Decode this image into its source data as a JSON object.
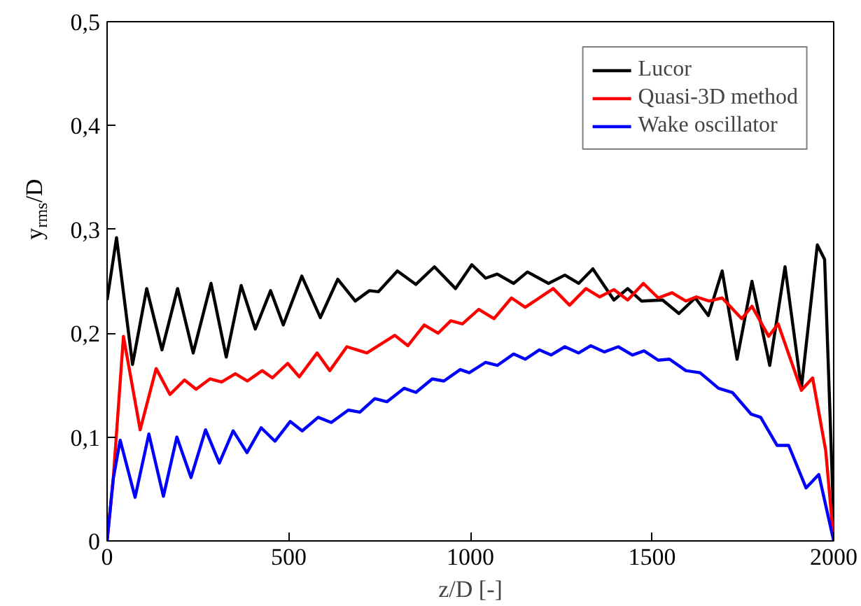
{
  "chart_data": {
    "type": "line",
    "xlabel": "z/D [-]",
    "ylabel": "y$_{rms}$/D",
    "xlim": [
      0,
      2000
    ],
    "ylim": [
      0,
      0.5
    ],
    "xticks": [
      0,
      500,
      1000,
      1500,
      2000
    ],
    "yticks": [
      0,
      {
        "value": 0.1,
        "label": "0,1"
      },
      {
        "value": 0.2,
        "label": "0,2"
      },
      {
        "value": 0.3,
        "label": "0,3"
      },
      {
        "value": 0.4,
        "label": "0,4"
      },
      {
        "value": 0.5,
        "label": "0,5"
      }
    ],
    "grid": false,
    "legend": "top right",
    "line_style": "solid",
    "marker": "none",
    "series": [
      {
        "name": "Lucor",
        "color": "#000000",
        "x": [
          0,
          26,
          70,
          109,
          151,
          194,
          237,
          286,
          328,
          369,
          408,
          450,
          485,
          536,
          587,
          635,
          683,
          722,
          747,
          799,
          850,
          901,
          959,
          1004,
          1042,
          1074,
          1119,
          1157,
          1215,
          1260,
          1298,
          1337,
          1395,
          1433,
          1471,
          1529,
          1574,
          1619,
          1655,
          1693,
          1734,
          1775,
          1824,
          1866,
          1911,
          1955,
          1975,
          2000
        ],
        "values": [
          0.232,
          0.292,
          0.17,
          0.243,
          0.184,
          0.243,
          0.181,
          0.248,
          0.177,
          0.246,
          0.204,
          0.241,
          0.208,
          0.255,
          0.215,
          0.252,
          0.231,
          0.241,
          0.24,
          0.26,
          0.247,
          0.264,
          0.243,
          0.266,
          0.253,
          0.257,
          0.248,
          0.259,
          0.248,
          0.256,
          0.248,
          0.262,
          0.232,
          0.243,
          0.231,
          0.232,
          0.219,
          0.234,
          0.217,
          0.26,
          0.175,
          0.25,
          0.169,
          0.264,
          0.147,
          0.285,
          0.271,
          0.02
        ]
      },
      {
        "name": "Quasi-3D method",
        "color": "#ff0000",
        "x": [
          0,
          17,
          45,
          91,
          135,
          173,
          213,
          245,
          283,
          315,
          353,
          386,
          427,
          455,
          497,
          529,
          578,
          613,
          660,
          715,
          792,
          828,
          873,
          911,
          946,
          978,
          1023,
          1065,
          1113,
          1151,
          1228,
          1273,
          1318,
          1356,
          1395,
          1433,
          1476,
          1517,
          1555,
          1593,
          1622,
          1657,
          1693,
          1747,
          1775,
          1821,
          1847,
          1911,
          1942,
          1978,
          2000
        ],
        "values": [
          0,
          0.06,
          0.197,
          0.107,
          0.166,
          0.141,
          0.155,
          0.146,
          0.156,
          0.153,
          0.161,
          0.154,
          0.164,
          0.157,
          0.171,
          0.158,
          0.181,
          0.164,
          0.187,
          0.181,
          0.198,
          0.188,
          0.208,
          0.2,
          0.212,
          0.209,
          0.223,
          0.214,
          0.234,
          0.225,
          0.243,
          0.227,
          0.243,
          0.235,
          0.242,
          0.232,
          0.248,
          0.234,
          0.239,
          0.231,
          0.235,
          0.231,
          0.234,
          0.214,
          0.226,
          0.197,
          0.209,
          0.145,
          0.157,
          0.087,
          0
        ]
      },
      {
        "name": "Wake oscillator",
        "color": "#0000ff",
        "x": [
          0,
          17,
          36,
          77,
          115,
          155,
          192,
          231,
          271,
          309,
          347,
          385,
          424,
          462,
          504,
          537,
          581,
          617,
          664,
          696,
          737,
          770,
          818,
          850,
          895,
          927,
          972,
          997,
          1042,
          1074,
          1119,
          1151,
          1190,
          1222,
          1260,
          1298,
          1331,
          1369,
          1407,
          1446,
          1478,
          1517,
          1548,
          1593,
          1632,
          1683,
          1721,
          1773,
          1799,
          1844,
          1876,
          1924,
          1959,
          2000
        ],
        "values": [
          0,
          0.06,
          0.097,
          0.042,
          0.103,
          0.043,
          0.1,
          0.061,
          0.107,
          0.075,
          0.106,
          0.085,
          0.109,
          0.096,
          0.115,
          0.106,
          0.119,
          0.114,
          0.126,
          0.124,
          0.137,
          0.134,
          0.147,
          0.143,
          0.156,
          0.154,
          0.165,
          0.162,
          0.172,
          0.169,
          0.18,
          0.175,
          0.184,
          0.179,
          0.187,
          0.181,
          0.188,
          0.182,
          0.187,
          0.179,
          0.183,
          0.174,
          0.175,
          0.164,
          0.162,
          0.147,
          0.143,
          0.122,
          0.119,
          0.092,
          0.092,
          0.051,
          0.064,
          0
        ]
      }
    ]
  }
}
